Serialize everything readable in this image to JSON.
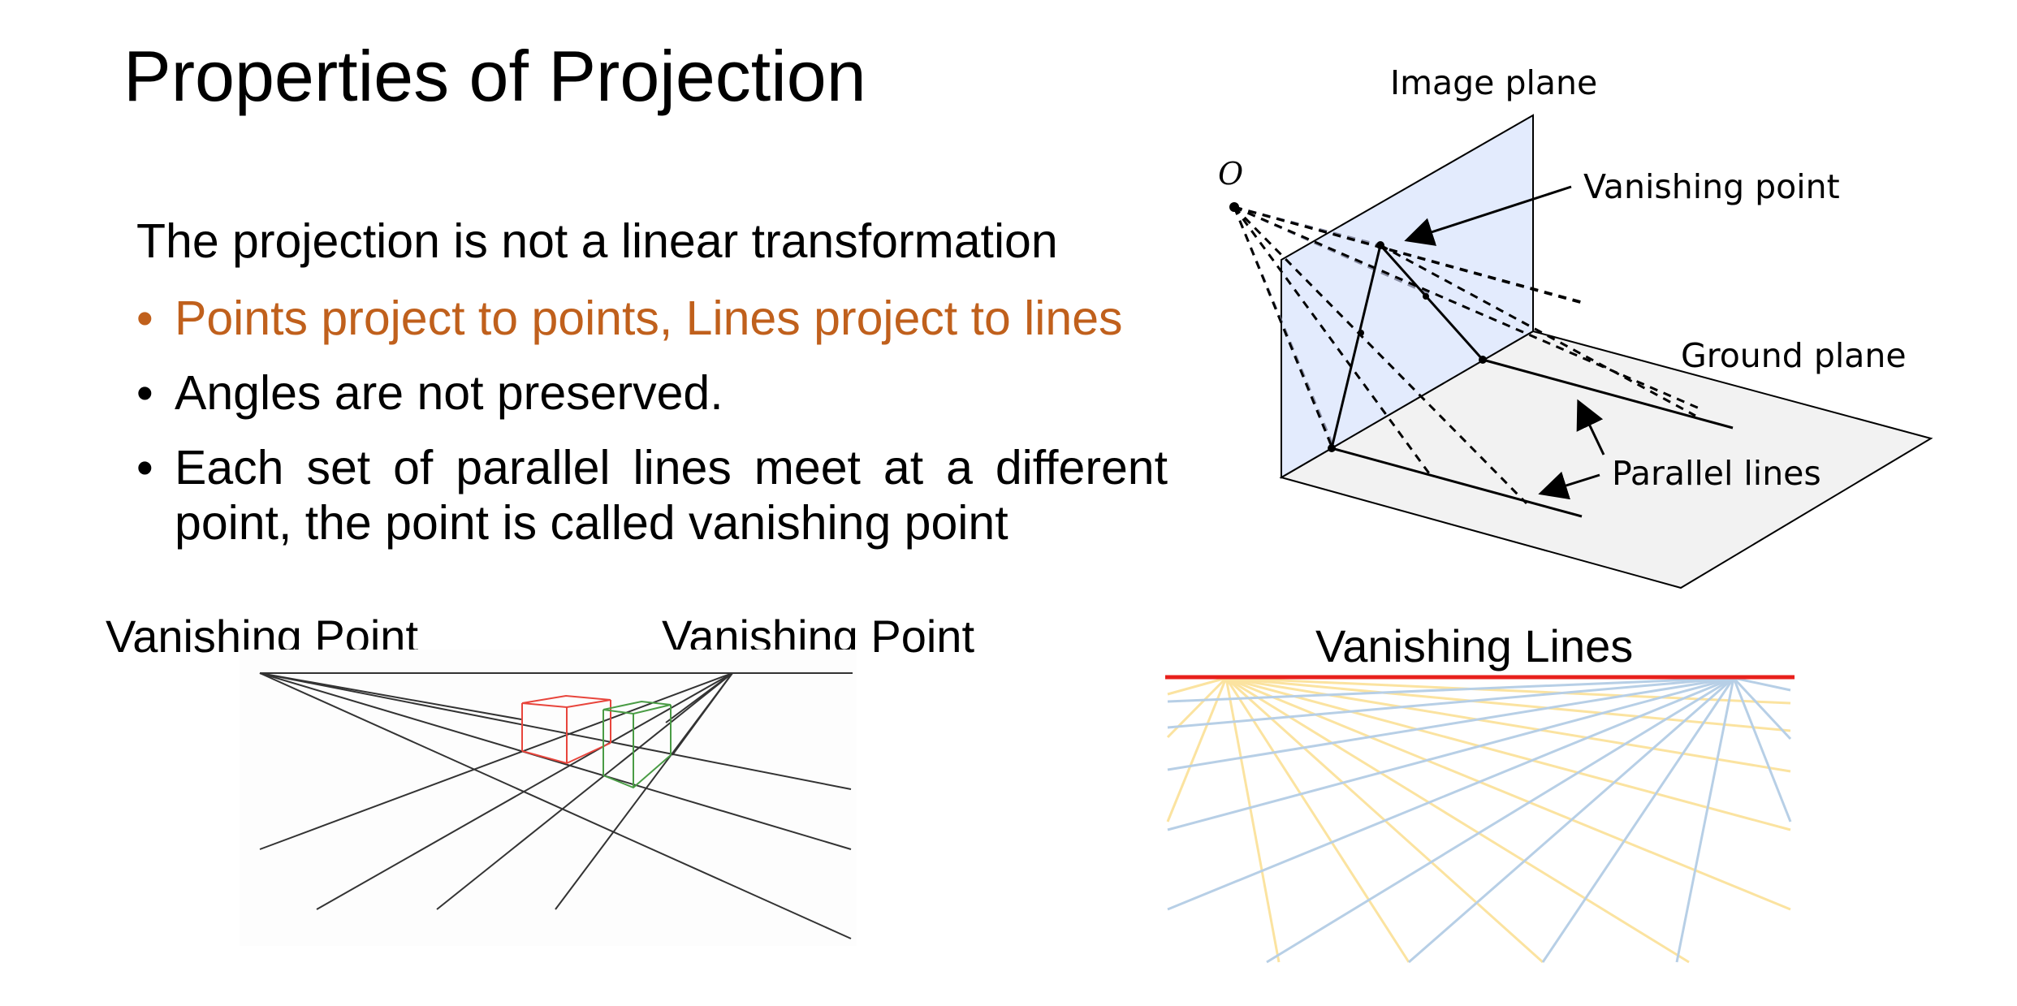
{
  "slide": {
    "title": "Properties of Projection",
    "lead": "The projection is not a linear transformation",
    "bullets": [
      {
        "text": "Points project to points, Lines project to lines",
        "color": "#c0601c"
      },
      {
        "text": "Angles are not preserved."
      },
      {
        "text": "Each set of parallel lines meet at a different point, the point is called vanishing point"
      }
    ],
    "bullet_glyph": "•"
  },
  "diagram": {
    "image_plane_label": "Image plane",
    "origin_label": "O",
    "vanishing_point_label": "Vanishing point",
    "ground_plane_label": "Ground plane",
    "parallel_lines_label": "Parallel lines",
    "colors": {
      "image_plane": "#e3ebfd",
      "ground_plane": "#f2f2f2"
    }
  },
  "perspective_sketch": {
    "left_label": "Vanishing Point",
    "right_label": "Vanishing Point",
    "colors": {
      "box_left": "#e8453c",
      "box_right": "#4a9c45",
      "lines": "#333333"
    }
  },
  "vanishing_lines": {
    "title": "Vanishing Lines",
    "colors": {
      "horizon": "#e8201c",
      "blue_lines": "#b7cfe6",
      "yellow_lines": "#fbe3a0"
    }
  }
}
